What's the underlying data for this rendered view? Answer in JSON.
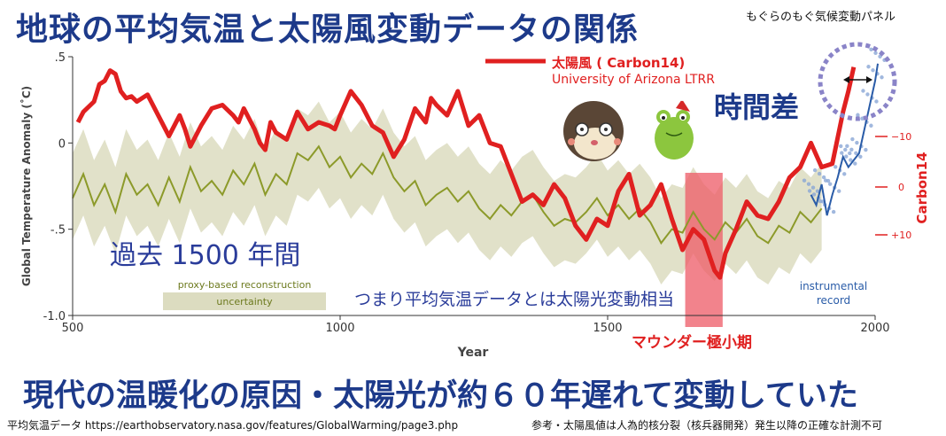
{
  "header": {
    "title": "地球の平均気温と太陽風変動データの関係",
    "panel_name": "もぐらのもぐ気候変動パネル"
  },
  "annotations": {
    "time_lag": "時間差",
    "period": "過去 1500 年間",
    "meaning": "つまり平均気温データとは太陽光変動相当",
    "maunder": "マウンダー極小期",
    "instrumental": [
      "instrumental",
      "record"
    ],
    "proxy_box": [
      "proxy-based reconstruction",
      "uncertainty"
    ]
  },
  "legend": {
    "series_name": "太陽風 ( Carbon14)",
    "source": "University of Arizona LTRR"
  },
  "headline": "現代の温暖化の原因・太陽光が約６０年遅れて変動していた",
  "footer": {
    "left": "平均気温データ https://earthobservatory.nasa.gov/features/GlobalWarming/page3.php",
    "right": "参考・太陽風値は人為的核分裂（核兵器開発）発生以降の正確な計測不可"
  },
  "colors": {
    "title": "#1d3a8a",
    "carbon14": "#e02020",
    "proxy": "#8c9a2a",
    "uncertainty": "#dcdcc0",
    "instrumental": "#2a5ca8",
    "maunder_band": "#ee5a66"
  },
  "chart_data": {
    "type": "line",
    "xlabel": "Year",
    "ylabel": "Global Temperature Anomaly (˚C)",
    "xlim": [
      500,
      2000
    ],
    "ylim": [
      -1.0,
      0.5
    ],
    "x_ticks": [
      "500",
      "1000",
      "1500",
      "2000"
    ],
    "y_ticks": [
      ".5",
      "0",
      "-.5",
      "-1.0"
    ],
    "y2_label": "Carbon14",
    "y2_ticks": [
      "−10",
      "0",
      "+10"
    ],
    "maunder_minimum": [
      1645,
      1715
    ],
    "series": [
      {
        "name": "太陽風 ( Carbon14)",
        "x": [
          510,
          520,
          540,
          550,
          560,
          570,
          580,
          590,
          600,
          610,
          620,
          640,
          660,
          680,
          700,
          710,
          720,
          740,
          760,
          780,
          800,
          810,
          820,
          840,
          850,
          860,
          870,
          880,
          900,
          920,
          940,
          960,
          980,
          990,
          1000,
          1020,
          1040,
          1060,
          1080,
          1100,
          1120,
          1140,
          1160,
          1170,
          1180,
          1200,
          1220,
          1240,
          1260,
          1280,
          1300,
          1320,
          1340,
          1360,
          1380,
          1400,
          1420,
          1440,
          1460,
          1480,
          1500,
          1520,
          1540,
          1560,
          1580,
          1600,
          1620,
          1640,
          1660,
          1680,
          1700,
          1710,
          1720,
          1740,
          1760,
          1780,
          1800,
          1820,
          1840,
          1860,
          1880,
          1900,
          1920,
          1940,
          1950,
          1960
        ],
        "values": [
          0.12,
          0.18,
          0.24,
          0.34,
          0.36,
          0.42,
          0.4,
          0.3,
          0.26,
          0.27,
          0.24,
          0.28,
          0.16,
          0.04,
          0.16,
          0.08,
          -0.02,
          0.1,
          0.2,
          0.22,
          0.16,
          0.12,
          0.2,
          0.08,
          0.0,
          -0.04,
          0.12,
          0.06,
          0.02,
          0.18,
          0.08,
          0.12,
          0.1,
          0.08,
          0.16,
          0.3,
          0.22,
          0.1,
          0.06,
          -0.08,
          0.02,
          0.2,
          0.12,
          0.26,
          0.22,
          0.16,
          0.3,
          0.1,
          0.16,
          0.0,
          -0.02,
          -0.18,
          -0.34,
          -0.3,
          -0.36,
          -0.24,
          -0.32,
          -0.48,
          -0.56,
          -0.44,
          -0.48,
          -0.28,
          -0.18,
          -0.42,
          -0.36,
          -0.24,
          -0.44,
          -0.62,
          -0.5,
          -0.56,
          -0.74,
          -0.78,
          -0.64,
          -0.5,
          -0.34,
          -0.42,
          -0.44,
          -0.34,
          -0.2,
          -0.14,
          0.0,
          -0.14,
          -0.12,
          0.18,
          0.3,
          0.44
        ]
      },
      {
        "name": "proxy-based reconstruction",
        "x": [
          500,
          520,
          540,
          560,
          580,
          600,
          620,
          640,
          660,
          680,
          700,
          720,
          740,
          760,
          780,
          800,
          820,
          840,
          860,
          880,
          900,
          920,
          940,
          960,
          980,
          1000,
          1020,
          1040,
          1060,
          1080,
          1100,
          1120,
          1140,
          1160,
          1180,
          1200,
          1220,
          1240,
          1260,
          1280,
          1300,
          1320,
          1340,
          1360,
          1380,
          1400,
          1420,
          1440,
          1460,
          1480,
          1500,
          1520,
          1540,
          1560,
          1580,
          1600,
          1620,
          1640,
          1660,
          1680,
          1700,
          1720,
          1740,
          1760,
          1780,
          1800,
          1820,
          1840,
          1860,
          1880,
          1900
        ],
        "values": [
          -0.32,
          -0.18,
          -0.36,
          -0.24,
          -0.4,
          -0.18,
          -0.3,
          -0.24,
          -0.36,
          -0.2,
          -0.34,
          -0.14,
          -0.28,
          -0.22,
          -0.3,
          -0.16,
          -0.24,
          -0.12,
          -0.3,
          -0.18,
          -0.24,
          -0.06,
          -0.1,
          -0.02,
          -0.14,
          -0.08,
          -0.2,
          -0.12,
          -0.18,
          -0.06,
          -0.2,
          -0.28,
          -0.22,
          -0.36,
          -0.3,
          -0.26,
          -0.34,
          -0.28,
          -0.38,
          -0.44,
          -0.36,
          -0.42,
          -0.34,
          -0.3,
          -0.4,
          -0.48,
          -0.44,
          -0.46,
          -0.4,
          -0.32,
          -0.42,
          -0.36,
          -0.44,
          -0.38,
          -0.46,
          -0.58,
          -0.5,
          -0.52,
          -0.4,
          -0.5,
          -0.56,
          -0.46,
          -0.52,
          -0.44,
          -0.54,
          -0.58,
          -0.48,
          -0.52,
          -0.4,
          -0.46,
          -0.38
        ]
      },
      {
        "name": "instrumental record",
        "x": [
          1880,
          1890,
          1900,
          1910,
          1920,
          1930,
          1940,
          1950,
          1960,
          1970,
          1980,
          1990,
          2000,
          2005
        ],
        "values": [
          -0.3,
          -0.36,
          -0.24,
          -0.42,
          -0.3,
          -0.2,
          -0.08,
          -0.14,
          -0.1,
          -0.06,
          0.08,
          0.22,
          0.36,
          0.46
        ]
      }
    ]
  }
}
